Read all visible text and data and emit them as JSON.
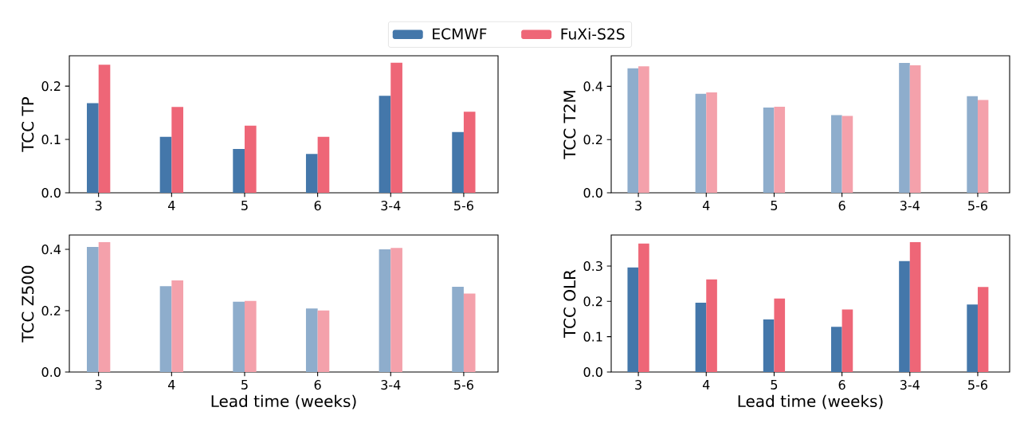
{
  "chart_data": [
    {
      "type": "bar",
      "ylabel": "TCC TP",
      "categories": [
        "3",
        "4",
        "5",
        "6",
        "3-4",
        "5-6"
      ],
      "ylim": [
        0,
        0.257
      ],
      "yticks": [
        {
          "value": 0,
          "label": "0.0"
        },
        {
          "value": 0.1,
          "label": "0.1"
        },
        {
          "value": 0.2,
          "label": "0.2"
        }
      ],
      "legend": "top",
      "series": [
        {
          "name": "ECMWF",
          "color": "#4477aa",
          "values": [
            0.168,
            0.105,
            0.082,
            0.073,
            0.182,
            0.114
          ]
        },
        {
          "name": "FuXi-S2S",
          "color": "#ee6677",
          "values": [
            0.24,
            0.161,
            0.126,
            0.105,
            0.244,
            0.152
          ]
        }
      ]
    },
    {
      "type": "bar",
      "ylabel": "TCC T2M",
      "categories": [
        "3",
        "4",
        "5",
        "6",
        "3-4",
        "5-6"
      ],
      "ylim": [
        0,
        0.515
      ],
      "yticks": [
        {
          "value": 0,
          "label": "0.0"
        },
        {
          "value": 0.2,
          "label": "0.2"
        },
        {
          "value": 0.4,
          "label": "0.4"
        }
      ],
      "series": [
        {
          "color": "#8eadcc",
          "values": [
            0.468,
            0.372,
            0.32,
            0.292,
            0.488,
            0.363
          ]
        },
        {
          "color": "#f4a1ab",
          "values": [
            0.475,
            0.377,
            0.323,
            0.289,
            0.48,
            0.349
          ]
        }
      ]
    },
    {
      "type": "bar",
      "ylabel": "TCC Z500",
      "xlabel": "Lead time (weeks)",
      "categories": [
        "3",
        "4",
        "5",
        "6",
        "3-4",
        "5-6"
      ],
      "ylim": [
        0,
        0.447
      ],
      "yticks": [
        {
          "value": 0,
          "label": "0.0"
        },
        {
          "value": 0.2,
          "label": "0.2"
        },
        {
          "value": 0.4,
          "label": "0.4"
        }
      ],
      "series": [
        {
          "color": "#8eadcc",
          "values": [
            0.408,
            0.28,
            0.229,
            0.207,
            0.4,
            0.278
          ]
        },
        {
          "color": "#f4a1ab",
          "values": [
            0.424,
            0.299,
            0.232,
            0.201,
            0.405,
            0.256
          ]
        }
      ]
    },
    {
      "type": "bar",
      "ylabel": "TCC OLR",
      "xlabel": "Lead time (weeks)",
      "categories": [
        "3",
        "4",
        "5",
        "6",
        "3-4",
        "5-6"
      ],
      "ylim": [
        0,
        0.388
      ],
      "yticks": [
        {
          "value": 0,
          "label": "0.0"
        },
        {
          "value": 0.1,
          "label": "0.1"
        },
        {
          "value": 0.2,
          "label": "0.2"
        },
        {
          "value": 0.3,
          "label": "0.3"
        }
      ],
      "series": [
        {
          "color": "#4477aa",
          "values": [
            0.296,
            0.196,
            0.149,
            0.128,
            0.314,
            0.191
          ]
        },
        {
          "color": "#ee6677",
          "values": [
            0.364,
            0.262,
            0.208,
            0.177,
            0.368,
            0.241
          ]
        }
      ]
    }
  ]
}
